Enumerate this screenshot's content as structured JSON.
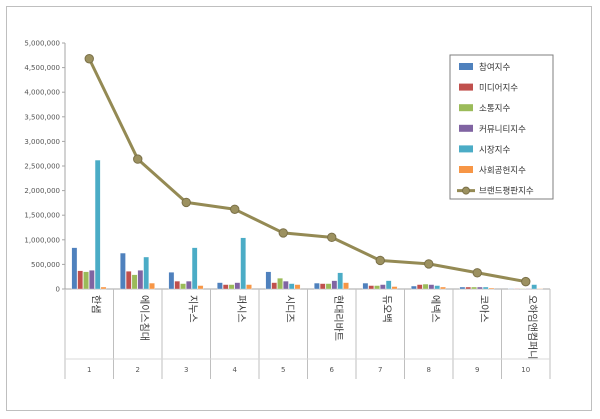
{
  "chart_data": {
    "type": "bar",
    "title": "",
    "xlabel": "",
    "ylabel": "",
    "ylim": [
      0,
      5000000
    ],
    "yticks": [
      "0",
      "500,000",
      "1,000,000",
      "1,500,000",
      "2,000,000",
      "2,500,000",
      "3,000,000",
      "3,500,000",
      "4,000,000",
      "4,500,000",
      "5,000,000"
    ],
    "grid": false,
    "legend_position": "right",
    "categories": [
      "한샘",
      "에이스침대",
      "지누스",
      "퍼시스",
      "시디즈",
      "현대리바트",
      "듀오백",
      "에넥스",
      "코아스",
      "오하임앤컴퍼니"
    ],
    "category_numbers": [
      "1",
      "2",
      "3",
      "4",
      "5",
      "6",
      "7",
      "8",
      "9",
      "10"
    ],
    "series": [
      {
        "name": "참여지수",
        "color": "#4f81bd",
        "values": [
          840000,
          730000,
          340000,
          130000,
          350000,
          120000,
          120000,
          60000,
          40000,
          10000
        ]
      },
      {
        "name": "미디어지수",
        "color": "#c0504d",
        "values": [
          370000,
          360000,
          160000,
          90000,
          130000,
          110000,
          70000,
          90000,
          40000,
          10000
        ]
      },
      {
        "name": "소통지수",
        "color": "#9bbb59",
        "values": [
          350000,
          290000,
          110000,
          90000,
          220000,
          110000,
          70000,
          100000,
          40000,
          10000
        ]
      },
      {
        "name": "커뮤니티지수",
        "color": "#8064a2",
        "values": [
          380000,
          380000,
          160000,
          130000,
          160000,
          170000,
          90000,
          90000,
          40000,
          10000
        ]
      },
      {
        "name": "시장지수",
        "color": "#4bacc6",
        "values": [
          2620000,
          650000,
          840000,
          1040000,
          110000,
          330000,
          170000,
          70000,
          40000,
          90000
        ]
      },
      {
        "name": "사회공헌지수",
        "color": "#f79646",
        "values": [
          40000,
          120000,
          70000,
          90000,
          90000,
          130000,
          50000,
          40000,
          20000,
          10000
        ]
      }
    ],
    "line_series": {
      "name": "브랜드평판지수",
      "color": "#948a54",
      "values": [
        4680000,
        2640000,
        1760000,
        1620000,
        1140000,
        1050000,
        580000,
        510000,
        330000,
        150000
      ]
    }
  }
}
